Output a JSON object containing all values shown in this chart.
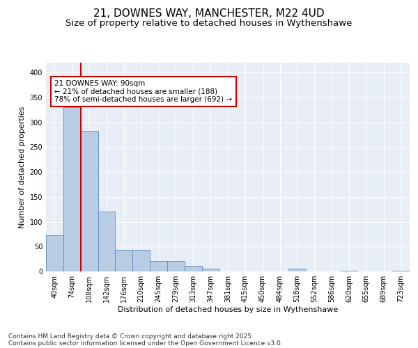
{
  "title_line1": "21, DOWNES WAY, MANCHESTER, M22 4UD",
  "title_line2": "Size of property relative to detached houses in Wythenshawe",
  "xlabel": "Distribution of detached houses by size in Wythenshawe",
  "ylabel": "Number of detached properties",
  "categories": [
    "40sqm",
    "74sqm",
    "108sqm",
    "142sqm",
    "176sqm",
    "210sqm",
    "245sqm",
    "279sqm",
    "313sqm",
    "347sqm",
    "381sqm",
    "415sqm",
    "450sqm",
    "484sqm",
    "518sqm",
    "552sqm",
    "586sqm",
    "620sqm",
    "655sqm",
    "689sqm",
    "723sqm"
  ],
  "values": [
    73,
    330,
    283,
    120,
    43,
    43,
    21,
    21,
    11,
    5,
    0,
    0,
    0,
    0,
    5,
    0,
    0,
    2,
    0,
    0,
    2
  ],
  "bar_color": "#b8cce4",
  "bar_edgecolor": "#5b8ec7",
  "vline_color": "#cc0000",
  "annotation_text": "21 DOWNES WAY: 90sqm\n← 21% of detached houses are smaller (188)\n78% of semi-detached houses are larger (692) →",
  "annotation_box_facecolor": "white",
  "annotation_box_edgecolor": "#cc0000",
  "ylim": [
    0,
    420
  ],
  "yticks": [
    0,
    50,
    100,
    150,
    200,
    250,
    300,
    350,
    400
  ],
  "plot_background": "#e8eef6",
  "grid_color": "#ffffff",
  "footer_line1": "Contains HM Land Registry data © Crown copyright and database right 2025.",
  "footer_line2": "Contains public sector information licensed under the Open Government Licence v3.0.",
  "title_fontsize": 11,
  "subtitle_fontsize": 9.5,
  "axis_label_fontsize": 8,
  "tick_fontsize": 7,
  "annotation_fontsize": 7.5,
  "footer_fontsize": 6.5
}
